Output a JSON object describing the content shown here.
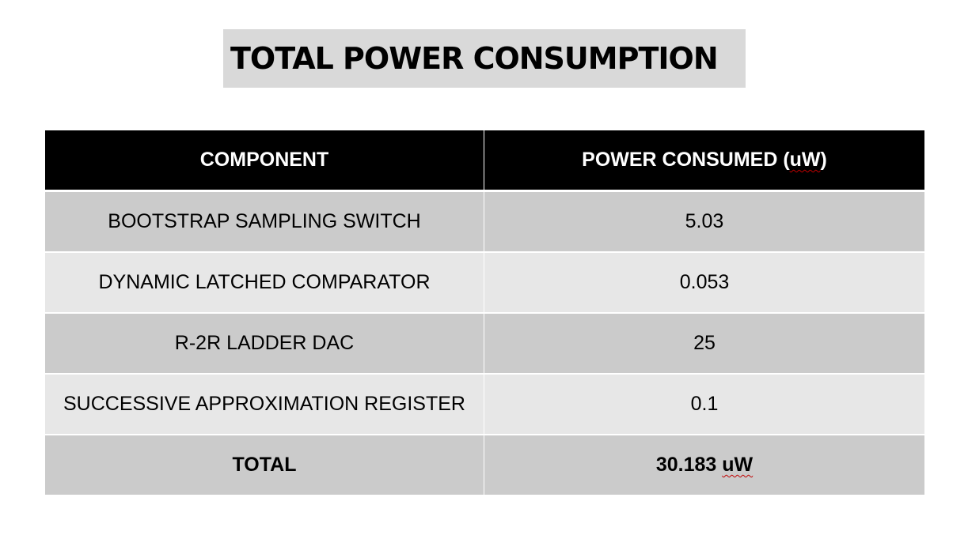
{
  "title": "TOTAL POWER CONSUMPTION",
  "table": {
    "headers": {
      "component": "COMPONENT",
      "power_prefix": "POWER CONSUMED (",
      "power_unit": "uW",
      "power_suffix": ")"
    },
    "rows": [
      {
        "component": "BOOTSTRAP SAMPLING SWITCH",
        "power": "5.03"
      },
      {
        "component": "DYNAMIC LATCHED COMPARATOR",
        "power": "0.053"
      },
      {
        "component": "R-2R LADDER DAC",
        "power": "25"
      },
      {
        "component": "SUCCESSIVE APPROXIMATION REGISTER",
        "power": "0.1"
      }
    ],
    "total": {
      "label": "TOTAL",
      "value_number": "30.183 ",
      "value_unit": "uW"
    }
  },
  "colors": {
    "title_background": "#d9d9d9",
    "header_background": "#000000",
    "row_dark": "#cbcbcb",
    "row_light": "#e7e7e7",
    "spellcheck_underline": "#c00000"
  }
}
